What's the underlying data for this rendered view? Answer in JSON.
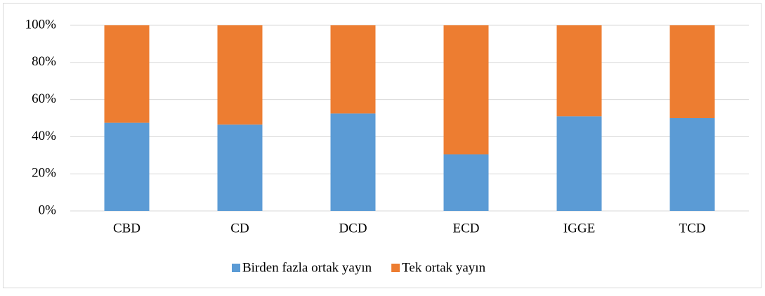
{
  "chart_data": {
    "type": "stacked_bar",
    "categories": [
      "CBD",
      "CD",
      "DCD",
      "ECD",
      "IGGE",
      "TCD"
    ],
    "series": [
      {
        "name": "Birden fazla ortak yayın",
        "color": "#5b9bd5",
        "values": [
          47.5,
          46.5,
          52.5,
          30.5,
          51,
          50
        ]
      },
      {
        "name": "Tek ortak yayın",
        "color": "#ed7d31",
        "values": [
          52.5,
          53.5,
          47.5,
          69.5,
          49,
          50
        ]
      }
    ],
    "ylim": [
      0,
      100
    ],
    "yticks": [
      {
        "value": 0,
        "label": "0%"
      },
      {
        "value": 20,
        "label": "20%"
      },
      {
        "value": 40,
        "label": "40%"
      },
      {
        "value": 60,
        "label": "60%"
      },
      {
        "value": 80,
        "label": "80%"
      },
      {
        "value": 100,
        "label": "100%"
      }
    ],
    "grid": true,
    "legend": "bottom"
  }
}
